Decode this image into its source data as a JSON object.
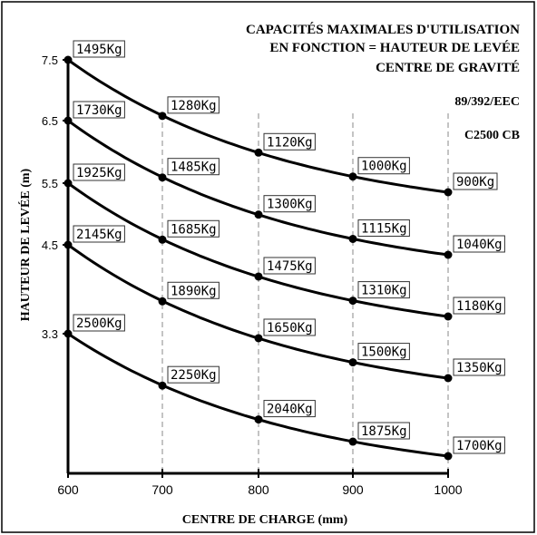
{
  "chart_data": {
    "type": "line",
    "title_lines": [
      "CAPACITÉS MAXIMALES D'UTILISATION",
      "EN FONCTION = HAUTEUR DE LEVÉE",
      "CENTRE DE GRAVITÉ"
    ],
    "directive": "89/392/EEC",
    "model": "C2500 CB",
    "xlabel": "CENTRE DE CHARGE (mm)",
    "ylabel": "HAUTEUR DE LEVÉE (m)",
    "x": [
      600,
      700,
      800,
      900,
      1000
    ],
    "x_tick_labels": [
      "600",
      "700",
      "800",
      "900",
      "1000"
    ],
    "y_tick_labels": [
      "7.5",
      "6.5",
      "5.5",
      "4.5",
      "3.3"
    ],
    "grid_vertical_dashed": true,
    "series": [
      {
        "height": 7.5,
        "values": [
          "1495Kg",
          "1280Kg",
          "1120Kg",
          "1000Kg",
          "900Kg"
        ]
      },
      {
        "height": 6.5,
        "values": [
          "1730Kg",
          "1485Kg",
          "1300Kg",
          "1115Kg",
          "1040Kg"
        ]
      },
      {
        "height": 5.5,
        "values": [
          "1925Kg",
          "1685Kg",
          "1475Kg",
          "1310Kg",
          "1180Kg"
        ]
      },
      {
        "height": 4.5,
        "values": [
          "2145Kg",
          "1890Kg",
          "1650Kg",
          "1500Kg",
          "1350Kg"
        ]
      },
      {
        "height": 3.3,
        "values": [
          "2500Kg",
          "2250Kg",
          "2040Kg",
          "1875Kg",
          "1700Kg"
        ]
      }
    ]
  },
  "colors": {
    "ink": "#000000",
    "background": "#ffffff",
    "grid": "#888888"
  }
}
